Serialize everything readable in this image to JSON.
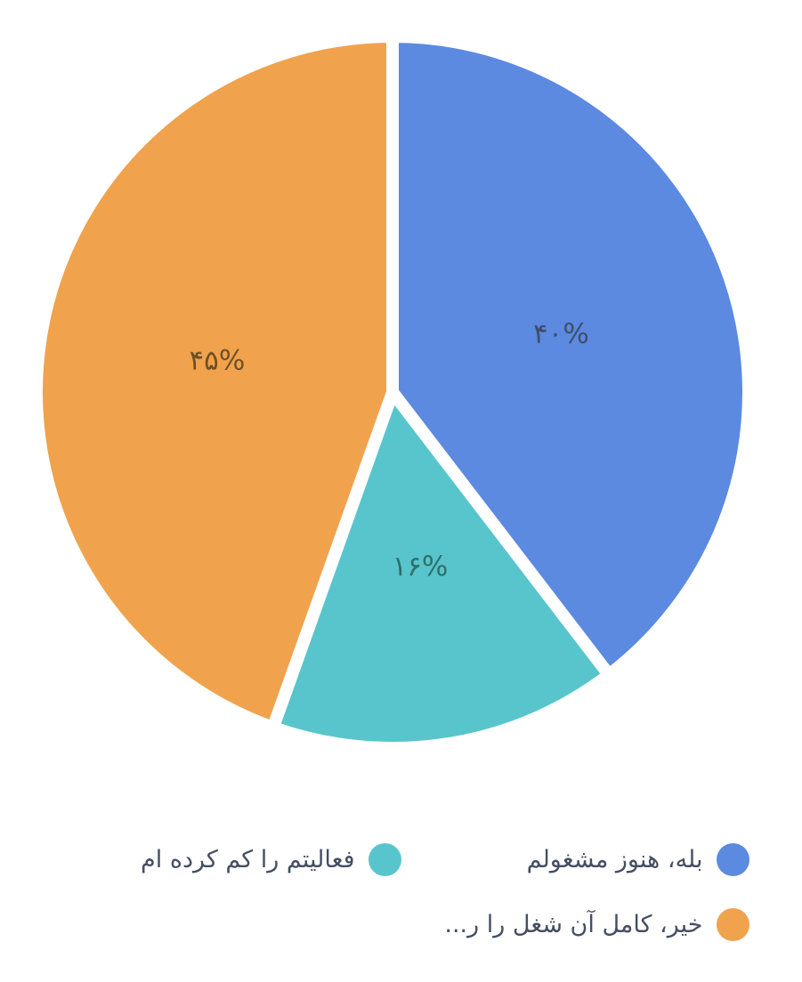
{
  "chart_data": {
    "type": "pie",
    "title": "",
    "legend_position": "bottom",
    "start_angle_deg": 0,
    "direction": "clockwise",
    "gap_color": "#ffffff",
    "slices": [
      {
        "label": "بله، هنوز مشغولم",
        "value": 40,
        "display": "۴۰%",
        "color": "#5C8AE0",
        "label_color": "#3F4E6E"
      },
      {
        "label": "فعالیتم را کم کرده ام",
        "value": 16,
        "display": "۱۶%",
        "color": "#58C5CC",
        "label_color": "#2F6F6A"
      },
      {
        "label": "خیر، کامل آن شغل را ر...",
        "value": 45,
        "display": "۴۵%",
        "color": "#F0A24D",
        "label_color": "#6F5026"
      }
    ]
  },
  "legend": {
    "items": [
      {
        "label": "بله، هنوز مشغولم",
        "color": "#5C8AE0"
      },
      {
        "label": "فعالیتم را کم کرده ام",
        "color": "#58C5CC"
      },
      {
        "label": "خیر، کامل آن شغل را ر...",
        "color": "#F0A24D"
      }
    ]
  }
}
